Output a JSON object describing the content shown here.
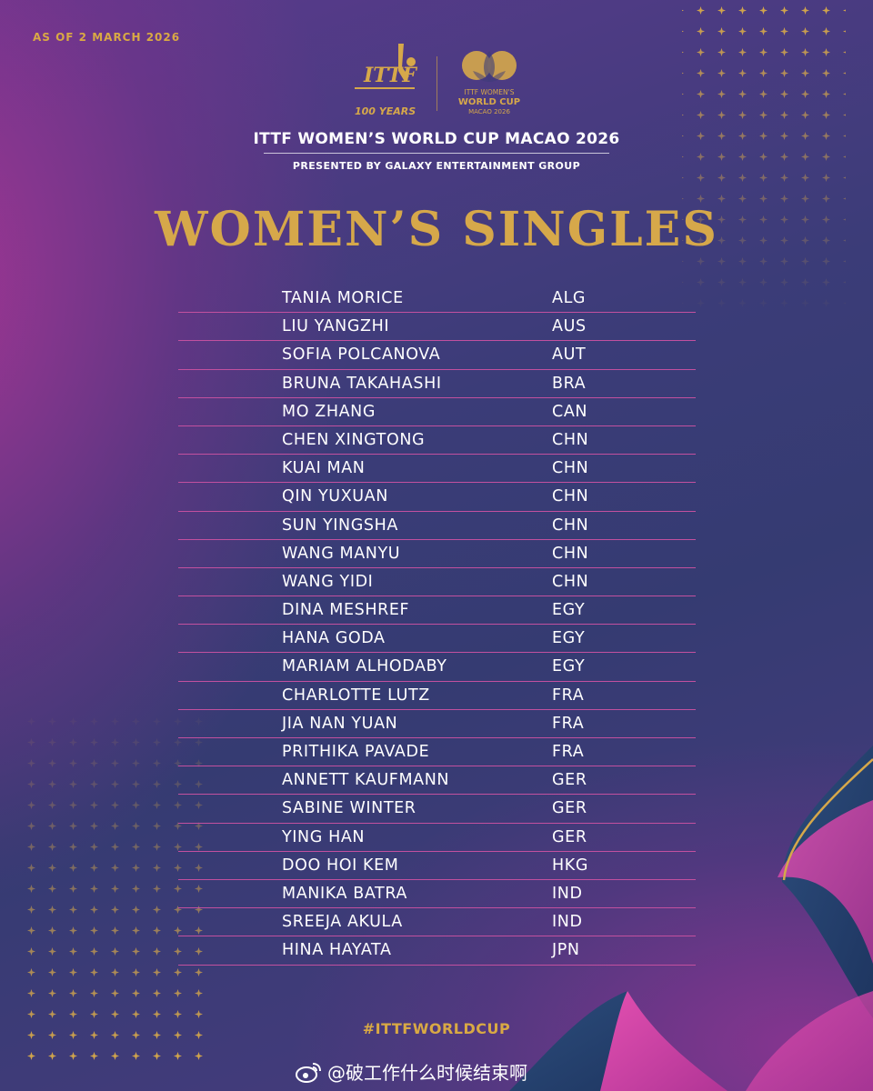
{
  "header": {
    "as_of": "AS OF 2 MARCH 2026",
    "ittf_logo_text": "ITTF",
    "ittf_logo_sub": "100 YEARS",
    "wc_logo_line1": "ITTF WOMEN'S",
    "wc_logo_line2": "WORLD CUP",
    "wc_logo_line3": "MACAO 2026",
    "event_title": "ITTF WOMEN’S WORLD CUP MACAO 2026",
    "presented_by": "PRESENTED BY GALAXY ENTERTAINMENT GROUP"
  },
  "heading": "WOMEN’S SINGLES",
  "players": [
    {
      "name": "TANIA MORICE",
      "country": "ALG"
    },
    {
      "name": "LIU YANGZHI",
      "country": "AUS"
    },
    {
      "name": "SOFIA POLCANOVA",
      "country": "AUT"
    },
    {
      "name": "BRUNA TAKAHASHI",
      "country": "BRA"
    },
    {
      "name": "MO ZHANG",
      "country": "CAN"
    },
    {
      "name": "CHEN XINGTONG",
      "country": "CHN"
    },
    {
      "name": "KUAI MAN",
      "country": "CHN"
    },
    {
      "name": "QIN YUXUAN",
      "country": "CHN"
    },
    {
      "name": "SUN YINGSHA",
      "country": "CHN"
    },
    {
      "name": "WANG MANYU",
      "country": "CHN"
    },
    {
      "name": "WANG YIDI",
      "country": "CHN"
    },
    {
      "name": "DINA MESHREF",
      "country": "EGY"
    },
    {
      "name": "HANA GODA",
      "country": "EGY"
    },
    {
      "name": "MARIAM ALHODABY",
      "country": "EGY"
    },
    {
      "name": "CHARLOTTE LUTZ",
      "country": "FRA"
    },
    {
      "name": "JIA NAN YUAN",
      "country": "FRA"
    },
    {
      "name": "PRITHIKA PAVADE",
      "country": "FRA"
    },
    {
      "name": "ANNETT KAUFMANN",
      "country": "GER"
    },
    {
      "name": "SABINE WINTER",
      "country": "GER"
    },
    {
      "name": "YING HAN",
      "country": "GER"
    },
    {
      "name": "DOO HOI KEM",
      "country": "HKG"
    },
    {
      "name": "MANIKA BATRA",
      "country": "IND"
    },
    {
      "name": "SREEJA AKULA",
      "country": "IND"
    },
    {
      "name": "HINA HAYATA",
      "country": "JPN"
    }
  ],
  "hashtag": "#ITTFWORLDCUP",
  "watermark": "@破工作什么时候结束啊",
  "colors": {
    "gold": "#d6a84a",
    "divider": "#c2509f",
    "text": "#ffffff"
  },
  "icons": [
    "ittf-logo-icon",
    "world-cup-logo-icon",
    "weibo-icon",
    "sparkle-pattern-icon"
  ]
}
